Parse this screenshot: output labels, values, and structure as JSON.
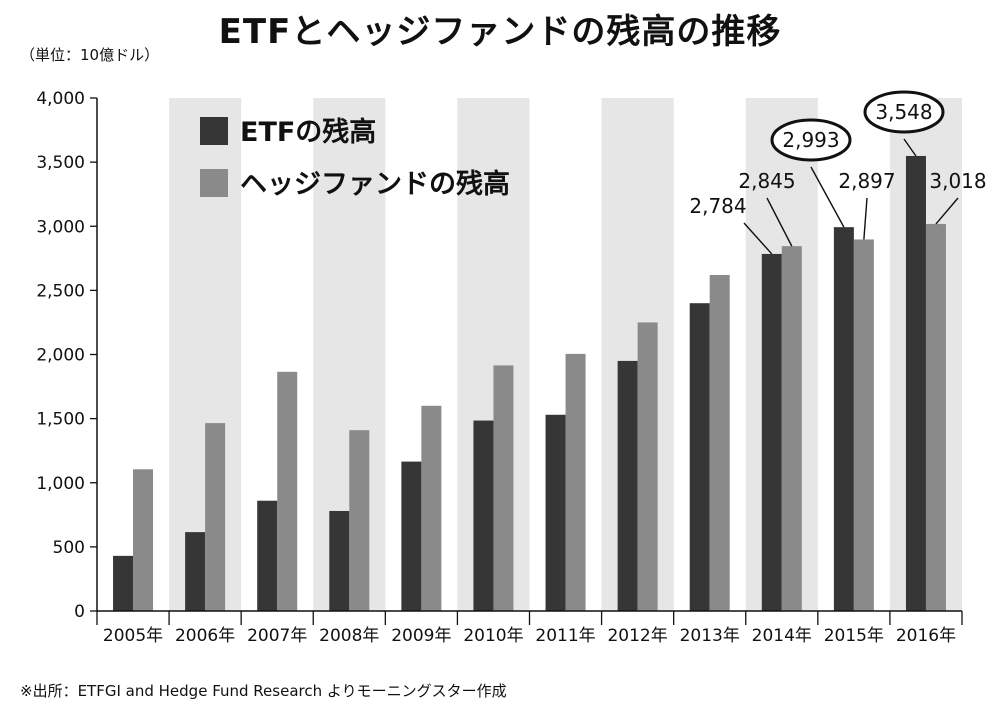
{
  "title": "ETFとヘッジファンドの残高の推移",
  "unit": "（単位：10億ドル）",
  "source": "※出所：ETFGI and Hedge Fund Research よりモーニングスター作成",
  "colors": {
    "etf": "#363636",
    "hedge": "#8a8a8a",
    "band": "#e6e6e6",
    "axis": "#111111"
  },
  "chart_data": {
    "type": "bar",
    "categories": [
      "2005年",
      "2006年",
      "2007年",
      "2008年",
      "2009年",
      "2010年",
      "2011年",
      "2012年",
      "2013年",
      "2014年",
      "2015年",
      "2016年"
    ],
    "series": [
      {
        "name": "ETFの残高",
        "values": [
          430,
          615,
          860,
          780,
          1165,
          1485,
          1530,
          1950,
          2400,
          2784,
          2993,
          3548
        ]
      },
      {
        "name": "ヘッジファンドの残高",
        "values": [
          1105,
          1465,
          1865,
          1410,
          1600,
          1915,
          2005,
          2250,
          2620,
          2845,
          2897,
          3018
        ]
      }
    ],
    "ylim": [
      0,
      4000
    ],
    "yticks": [
      "0",
      "500",
      "1,000",
      "1,500",
      "2,000",
      "2,500",
      "3,000",
      "3,500",
      "4,000"
    ],
    "ytick_values": [
      0,
      500,
      1000,
      1500,
      2000,
      2500,
      3000,
      3500,
      4000
    ],
    "legend_position": "top-left",
    "annotations": [
      {
        "text": "2,784",
        "category": "2014年",
        "series": 0,
        "circled": false
      },
      {
        "text": "2,845",
        "category": "2014年",
        "series": 1,
        "circled": false
      },
      {
        "text": "2,993",
        "category": "2015年",
        "series": 0,
        "circled": true
      },
      {
        "text": "2,897",
        "category": "2015年",
        "series": 1,
        "circled": false
      },
      {
        "text": "3,548",
        "category": "2016年",
        "series": 0,
        "circled": true
      },
      {
        "text": "3,018",
        "category": "2016年",
        "series": 1,
        "circled": false
      }
    ]
  }
}
